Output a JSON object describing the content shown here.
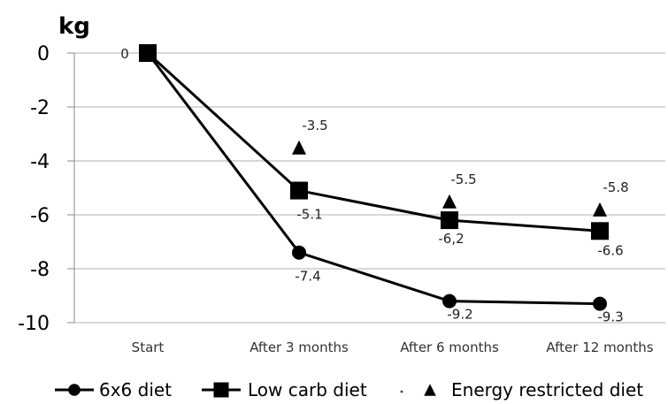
{
  "chart_data": {
    "type": "line",
    "categories": [
      "Start",
      "After 3 months",
      "After 6 months",
      "After 12 months"
    ],
    "ylabel": "kg",
    "ylim": [
      -10,
      0
    ],
    "yticks": [
      0,
      -2,
      -4,
      -6,
      -8,
      -10
    ],
    "grid": true,
    "legend": "bottom",
    "series": [
      {
        "name": "6x6 diet",
        "values": [
          0,
          -7.4,
          -9.2,
          -9.3
        ],
        "labels": [
          "",
          "-7.4",
          "-9.2",
          "-9.3"
        ],
        "marker": "circle",
        "line": true
      },
      {
        "name": "Low carb diet",
        "values": [
          0,
          -5.1,
          -6.2,
          -6.6
        ],
        "labels": [
          "",
          "-5.1",
          "-6,2",
          "-6.6"
        ],
        "marker": "square",
        "line": true
      },
      {
        "name": "Energy restricted diet",
        "values": [
          0,
          -3.5,
          -5.5,
          -5.8
        ],
        "labels": [
          "0",
          "-3.5",
          "-5.5",
          "-5.8"
        ],
        "marker": "triangle",
        "line": false
      }
    ],
    "colors": {
      "series": "#000000",
      "grid": "#b0b0b0"
    }
  }
}
